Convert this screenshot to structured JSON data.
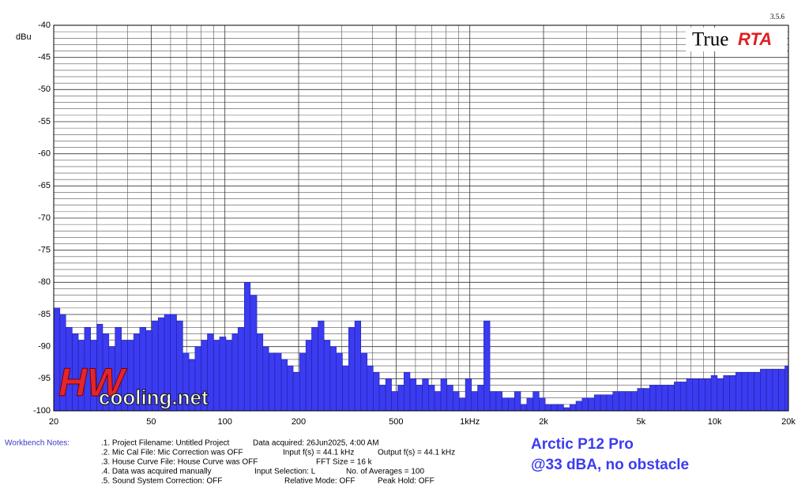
{
  "chart_data": {
    "type": "histogram",
    "app_name": "True",
    "app_name_accent": "RTA",
    "version": "3.5.6",
    "watermark_1": "HW",
    "watermark_2": "cooling.net",
    "y_label": "dBu",
    "annotation_1": "Arctic P12 Pro",
    "annotation_2": "@33 dBA, no obstacle",
    "xscale": "log",
    "xlim": [
      20,
      20000
    ],
    "ylim": [
      -100,
      -40
    ],
    "color": "#3b3bf0",
    "grid": true,
    "xticks": [
      20,
      50,
      100,
      200,
      500,
      {
        "value": 1000,
        "label": "1kHz"
      },
      {
        "value": 2000,
        "label": "2k"
      },
      {
        "value": 5000,
        "label": "5k"
      },
      {
        "value": 10000,
        "label": "10k"
      },
      {
        "value": 20000,
        "label": "20k"
      }
    ],
    "xminor": [
      30,
      40,
      60,
      70,
      80,
      90,
      300,
      400,
      600,
      700,
      800,
      900,
      3000,
      4000,
      6000,
      7000,
      8000,
      9000
    ],
    "yticks": [
      -40,
      -45,
      -50,
      -55,
      -60,
      -65,
      -70,
      -75,
      -80,
      -85,
      -90,
      -95,
      -100
    ],
    "yminor": [
      -41,
      -42,
      -43,
      -44,
      -46,
      -47,
      -48,
      -49,
      -51,
      -52,
      -53,
      -54,
      -56,
      -57,
      -58,
      -59,
      -61,
      -62,
      -63,
      -64,
      -66,
      -67,
      -68,
      -69,
      -71,
      -72,
      -73,
      -74,
      -76,
      -77,
      -78,
      -79,
      -81,
      -82,
      -83,
      -84,
      -86,
      -87,
      -88,
      -89,
      -91,
      -92,
      -93,
      -94,
      -96,
      -97,
      -98,
      -99
    ],
    "bins": [
      20,
      21.2,
      22.4,
      23.8,
      25.2,
      26.7,
      28.3,
      30.0,
      31.7,
      33.6,
      35.6,
      37.8,
      40,
      42.4,
      44.9,
      47.6,
      50.4,
      53.4,
      56.6,
      59.9,
      63.5,
      67.3,
      71.3,
      75.5,
      80,
      84.8,
      89.8,
      95.1,
      101,
      107,
      113,
      120,
      127,
      135,
      143,
      151,
      160,
      170,
      180,
      190,
      202,
      214,
      226,
      240,
      254,
      269,
      285,
      302,
      320,
      339,
      359,
      381,
      403,
      427,
      453,
      479,
      508,
      538,
      570,
      604,
      640,
      678,
      718,
      761,
      806,
      854,
      905,
      959,
      1016,
      1076,
      1140,
      1208,
      1280,
      1356,
      1437,
      1522,
      1613,
      1709,
      1810,
      1918,
      2032,
      2153,
      2281,
      2416,
      2560,
      2712,
      2874,
      3044,
      3225,
      3417,
      3620,
      3836,
      4064,
      4305,
      4561,
      4833,
      5120,
      5424,
      5747,
      6089,
      6451,
      6834,
      7241,
      7671,
      8127,
      8611,
      9123,
      9665,
      10240,
      10849,
      11494,
      12177,
      12902,
      13669,
      14482,
      15343,
      16255,
      17222,
      18246,
      19331,
      20000
    ],
    "values": [
      -84,
      -85,
      -87,
      -88,
      -89,
      -87,
      -89,
      -86.5,
      -88,
      -90,
      -87,
      -89,
      -89,
      -88,
      -87,
      -87.5,
      -86,
      -85.5,
      -85,
      -85,
      -86,
      -91,
      -92,
      -90,
      -89,
      -88,
      -89,
      -88.5,
      -89,
      -88,
      -87,
      -80,
      -82,
      -88,
      -90,
      -91,
      -91,
      -92,
      -93,
      -94,
      -91,
      -89,
      -87,
      -86,
      -89,
      -90,
      -91,
      -93,
      -87,
      -86,
      -91,
      -93,
      -94,
      -96,
      -95,
      -97,
      -96,
      -94,
      -95,
      -96,
      -95,
      -96,
      -97,
      -95,
      -96,
      -97,
      -98,
      -95,
      -97,
      -96,
      -86,
      -97,
      -97,
      -98,
      -98,
      -97,
      -99,
      -98,
      -97,
      -98,
      -99,
      -99,
      -99,
      -99.5,
      -99,
      -98.5,
      -98,
      -98,
      -97.5,
      -97.5,
      -97.5,
      -97,
      -97,
      -97,
      -97,
      -96.5,
      -96.5,
      -96,
      -96,
      -96,
      -96,
      -95.5,
      -95.5,
      -95,
      -95,
      -95,
      -95,
      -94.5,
      -95,
      -94.5,
      -94.5,
      -94,
      -94,
      -94,
      -94,
      -93.5,
      -93.5,
      -93.5,
      -93.5,
      -93
    ]
  },
  "notes": {
    "heading": "Workbench Notes:",
    "rows": [
      [
        ".1. Project Filename: Untitled Project",
        "Data acquired: 26Jun2025, 4:00 AM"
      ],
      [
        ".2. Mic Cal File: Mic Correction was OFF",
        "Input f(s) = 44.1 kHz",
        "Output f(s) = 44.1 kHz"
      ],
      [
        ".3. House Curve File: House Curve was OFF",
        "FFT Size = 16 k"
      ],
      [
        ".4. Data was acquired manually",
        "Input Selection: L",
        "No. of Averages = 100"
      ],
      [
        ".5. Sound System Correction: OFF",
        "Relative Mode:  OFF",
        "Peak Hold: OFF"
      ]
    ]
  }
}
